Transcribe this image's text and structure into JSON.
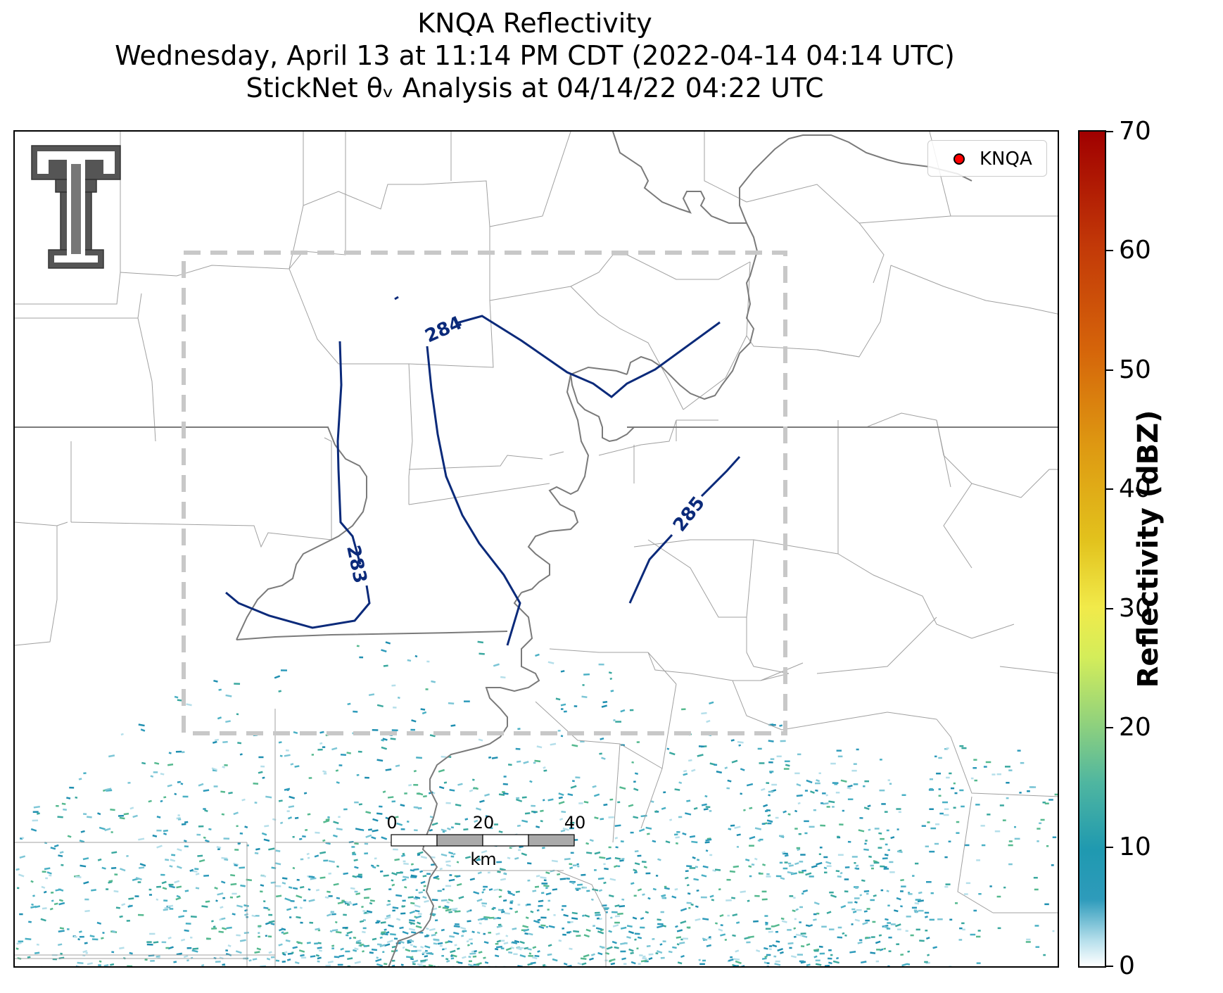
{
  "title": {
    "line1": "KNQA Reflectivity",
    "line2": "Wednesday, April 13 at 11:14 PM CDT (2022-04-14 04:14 UTC)",
    "line3": "StickNet θᵥ Analysis at 04/14/22 04:22 UTC"
  },
  "legend": {
    "label": "KNQA",
    "marker_color": "#ff0000"
  },
  "colorbar": {
    "title": "Reflectivity (dBZ)",
    "ticks": [
      "70",
      "60",
      "50",
      "40",
      "30",
      "20",
      "10",
      "0"
    ],
    "min": 0,
    "max": 70
  },
  "contours": {
    "color": "#0b2a7a",
    "labels": [
      "283",
      "284",
      "285"
    ]
  },
  "scale_bar": {
    "labels": [
      "0",
      "20",
      "40"
    ],
    "unit": "km"
  },
  "analysis_box": {
    "style": "dashed",
    "color": "#c8c8c8"
  },
  "logo": {
    "icon": "texas-tech-double-t-logo"
  },
  "colors": {
    "state_border": "#7a7a7a",
    "county_border": "#9a9a9a",
    "reflectivity_low": "#2e9bbb"
  }
}
